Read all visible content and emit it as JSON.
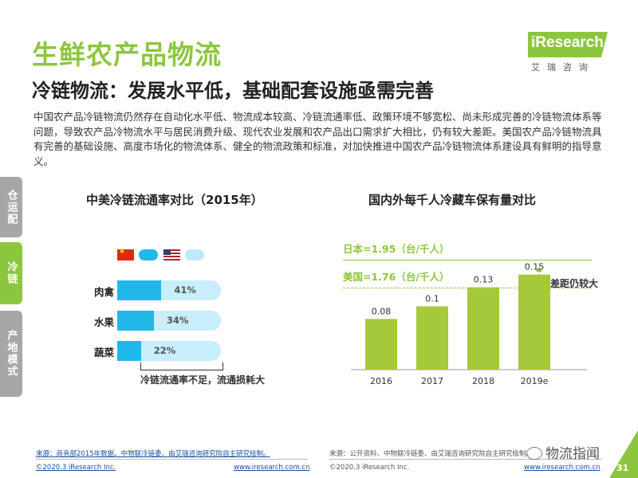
{
  "header": {
    "title": "生鲜农产品物流",
    "subtitle": "冷链物流：发展水平低，基础配套设施亟需完善"
  },
  "brand": {
    "logo_text": "iResearch",
    "logo_cn": "艾瑞咨询",
    "accent_color": "#8cc63f"
  },
  "intro": "中国农产品冷链物流仍然存在自动化水平低、物流成本较高、冷链流通率低、政策环境不够宽松、尚未形成完善的冷链物流体系等问题，导致农产品冷物流水平与居民消费升级、现代农业发展和农产品出口需求扩大相比，仍有较大差距。美国农产品冷链物流具有完善的基础设施、高度市场化的物流体系、健全的物流政策和标准，对加快推进中国农产品冷链物流体系建设具有鲜明的指导意义。",
  "sidetabs": [
    {
      "label": "仓运配",
      "active": false
    },
    {
      "label": "冷链",
      "active": true
    },
    {
      "label": "产地模式",
      "active": false
    }
  ],
  "left_chart": {
    "title": "中美冷链流通率对比（2015年）",
    "legend_icons": [
      "china-flag-icon",
      "china-color-swatch",
      "usa-flag-icon",
      "usa-color-swatch"
    ],
    "colors": {
      "china": "#1fb8e8",
      "usa": "#c8eefb"
    },
    "note": "冷链流通率不足，流通损耗大"
  },
  "right_chart": {
    "title": "国内外每千人冷藏车保有量对比",
    "annotations": {
      "japan": "日本=1.95（台/千人）",
      "usa": "美国=1.76（台/千人）",
      "gap": "差距仍较大"
    },
    "bar_color": "#a6c93b"
  },
  "chart_data": [
    {
      "type": "bar",
      "orientation": "horizontal",
      "title": "中美冷链流通率对比（2015年）",
      "categories": [
        "肉禽",
        "水果",
        "蔬菜"
      ],
      "series": [
        {
          "values": [
            41,
            34,
            22
          ],
          "labels": [
            "41%",
            "34%",
            "22%"
          ]
        }
      ],
      "ylim": [
        0,
        100
      ]
    },
    {
      "type": "bar",
      "title": "国内外每千人冷藏车保有量对比",
      "categories": [
        "2016",
        "2017",
        "2018",
        "2019e"
      ],
      "values": [
        0.08,
        0.1,
        0.13,
        0.15
      ],
      "labels": [
        "0.08",
        "0.1",
        "0.13",
        "0.15"
      ],
      "ylim": [
        0,
        0.22
      ]
    }
  ],
  "footer": {
    "source_left": "来源：商务部2015年数据、中物联冷链委、由艾瑞咨询研究院自主研究绘制。",
    "source_right": "来源：公开资料、中物联冷链委、由艾瑞咨询研究院自主研究绘制。",
    "copyright_left": "©2020.3 iResearch Inc.",
    "url_left": "www.iresearch.com.cn",
    "copyright_right": "©2020.3 iResearch Inc.",
    "url_right": "www.iresearch.com.cn",
    "wechat": "物流指闻",
    "page_number": "31"
  }
}
